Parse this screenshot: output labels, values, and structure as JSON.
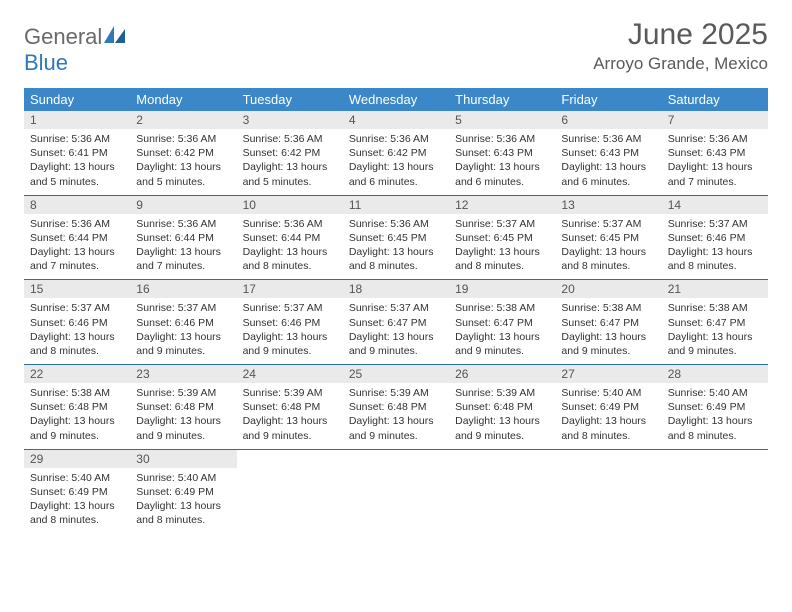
{
  "logo": {
    "text1": "General",
    "text2": "Blue"
  },
  "title": "June 2025",
  "location": "Arroyo Grande, Mexico",
  "colors": {
    "header_bg": "#3b87c8",
    "header_text": "#ffffff",
    "daynum_bg": "#eaeaea",
    "daynum_text": "#555555",
    "row_border": "#2e6da4",
    "logo_gray": "#6a6a6a",
    "logo_blue": "#2f79b9",
    "title_color": "#5a5a5a"
  },
  "weekdays": [
    "Sunday",
    "Monday",
    "Tuesday",
    "Wednesday",
    "Thursday",
    "Friday",
    "Saturday"
  ],
  "days": [
    {
      "n": "1",
      "sr": "5:36 AM",
      "ss": "6:41 PM",
      "dl": "13 hours and 5 minutes."
    },
    {
      "n": "2",
      "sr": "5:36 AM",
      "ss": "6:42 PM",
      "dl": "13 hours and 5 minutes."
    },
    {
      "n": "3",
      "sr": "5:36 AM",
      "ss": "6:42 PM",
      "dl": "13 hours and 5 minutes."
    },
    {
      "n": "4",
      "sr": "5:36 AM",
      "ss": "6:42 PM",
      "dl": "13 hours and 6 minutes."
    },
    {
      "n": "5",
      "sr": "5:36 AM",
      "ss": "6:43 PM",
      "dl": "13 hours and 6 minutes."
    },
    {
      "n": "6",
      "sr": "5:36 AM",
      "ss": "6:43 PM",
      "dl": "13 hours and 6 minutes."
    },
    {
      "n": "7",
      "sr": "5:36 AM",
      "ss": "6:43 PM",
      "dl": "13 hours and 7 minutes."
    },
    {
      "n": "8",
      "sr": "5:36 AM",
      "ss": "6:44 PM",
      "dl": "13 hours and 7 minutes."
    },
    {
      "n": "9",
      "sr": "5:36 AM",
      "ss": "6:44 PM",
      "dl": "13 hours and 7 minutes."
    },
    {
      "n": "10",
      "sr": "5:36 AM",
      "ss": "6:44 PM",
      "dl": "13 hours and 8 minutes."
    },
    {
      "n": "11",
      "sr": "5:36 AM",
      "ss": "6:45 PM",
      "dl": "13 hours and 8 minutes."
    },
    {
      "n": "12",
      "sr": "5:37 AM",
      "ss": "6:45 PM",
      "dl": "13 hours and 8 minutes."
    },
    {
      "n": "13",
      "sr": "5:37 AM",
      "ss": "6:45 PM",
      "dl": "13 hours and 8 minutes."
    },
    {
      "n": "14",
      "sr": "5:37 AM",
      "ss": "6:46 PM",
      "dl": "13 hours and 8 minutes."
    },
    {
      "n": "15",
      "sr": "5:37 AM",
      "ss": "6:46 PM",
      "dl": "13 hours and 8 minutes."
    },
    {
      "n": "16",
      "sr": "5:37 AM",
      "ss": "6:46 PM",
      "dl": "13 hours and 9 minutes."
    },
    {
      "n": "17",
      "sr": "5:37 AM",
      "ss": "6:46 PM",
      "dl": "13 hours and 9 minutes."
    },
    {
      "n": "18",
      "sr": "5:37 AM",
      "ss": "6:47 PM",
      "dl": "13 hours and 9 minutes."
    },
    {
      "n": "19",
      "sr": "5:38 AM",
      "ss": "6:47 PM",
      "dl": "13 hours and 9 minutes."
    },
    {
      "n": "20",
      "sr": "5:38 AM",
      "ss": "6:47 PM",
      "dl": "13 hours and 9 minutes."
    },
    {
      "n": "21",
      "sr": "5:38 AM",
      "ss": "6:47 PM",
      "dl": "13 hours and 9 minutes."
    },
    {
      "n": "22",
      "sr": "5:38 AM",
      "ss": "6:48 PM",
      "dl": "13 hours and 9 minutes."
    },
    {
      "n": "23",
      "sr": "5:39 AM",
      "ss": "6:48 PM",
      "dl": "13 hours and 9 minutes."
    },
    {
      "n": "24",
      "sr": "5:39 AM",
      "ss": "6:48 PM",
      "dl": "13 hours and 9 minutes."
    },
    {
      "n": "25",
      "sr": "5:39 AM",
      "ss": "6:48 PM",
      "dl": "13 hours and 9 minutes."
    },
    {
      "n": "26",
      "sr": "5:39 AM",
      "ss": "6:48 PM",
      "dl": "13 hours and 9 minutes."
    },
    {
      "n": "27",
      "sr": "5:40 AM",
      "ss": "6:49 PM",
      "dl": "13 hours and 8 minutes."
    },
    {
      "n": "28",
      "sr": "5:40 AM",
      "ss": "6:49 PM",
      "dl": "13 hours and 8 minutes."
    },
    {
      "n": "29",
      "sr": "5:40 AM",
      "ss": "6:49 PM",
      "dl": "13 hours and 8 minutes."
    },
    {
      "n": "30",
      "sr": "5:40 AM",
      "ss": "6:49 PM",
      "dl": "13 hours and 8 minutes."
    }
  ],
  "labels": {
    "sunrise": "Sunrise: ",
    "sunset": "Sunset: ",
    "daylight": "Daylight: "
  }
}
